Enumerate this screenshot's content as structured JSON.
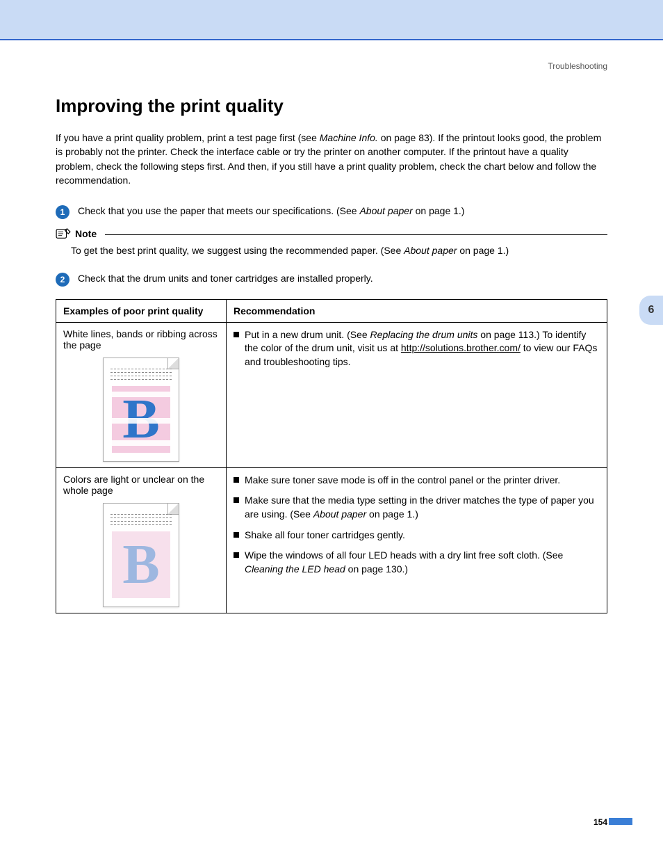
{
  "breadcrumb": "Troubleshooting",
  "page_title": "Improving the print quality",
  "intro_html": "If you have a print quality problem, print a test page first (see <span class=\"italic\">Machine Info.</span> on page 83). If the printout looks good, the problem is probably not the printer. Check the interface cable or try the printer on another computer. If the printout have a quality problem, check the following steps first. And then, if you still have a print quality problem, check the chart below and follow the recommendation.",
  "steps": [
    {
      "num": "1",
      "html": "Check that you use the paper that meets our specifications. (See <span class=\"italic\">About paper</span> on page 1.)"
    },
    {
      "num": "2",
      "html": "Check that the drum units and toner cartridges are installed properly."
    }
  ],
  "note": {
    "label": "Note",
    "body_html": "To get the best print quality, we suggest using the recommended paper. (See <span class=\"italic\">About paper</span> on page 1.)"
  },
  "table": {
    "headers": [
      "Examples of poor print quality",
      "Recommendation"
    ],
    "rows": [
      {
        "example_text": "White lines, bands or ribbing across the page",
        "thumb_variant": "v1",
        "thumb": {
          "bg_color": "#f4cbe0",
          "letter": "B",
          "letter_color": "#2f75c9",
          "white_band_tops": [
            8,
            46,
            78
          ]
        },
        "recs": [
          "Put in a new drum unit. (See <span class=\"italic\">Replacing the drum units</span> on page 113.) To identify the color of the drum unit, visit us at <a class=\"link\" href=\"#\">http://solutions.brother.com/</a> to view our FAQs and troubleshooting tips."
        ]
      },
      {
        "example_text": "Colors are light or unclear on the whole page",
        "thumb_variant": "v2",
        "thumb": {
          "bg_color": "#f7e0ec",
          "letter": "B",
          "letter_color": "#9db7e0"
        },
        "recs": [
          "Make sure toner save mode is off in the control panel or the printer driver.",
          "Make sure that the media type setting in the driver matches the type of paper you are using. (See <span class=\"italic\">About paper</span> on page 1.)",
          "Shake all four toner cartridges gently.",
          "Wipe the windows of all four LED heads with a dry lint free soft cloth. (See <span class=\"italic\">Cleaning the LED head</span> on page 130.)"
        ]
      }
    ]
  },
  "side_tab": "6",
  "page_number": "154",
  "colors": {
    "banner_bg": "#c9dbf5",
    "banner_border": "#3366cc",
    "step_badge": "#1e6bb8",
    "side_tab_bg": "#c9dbf5",
    "pagenum_bar": "#3a7ed6"
  }
}
